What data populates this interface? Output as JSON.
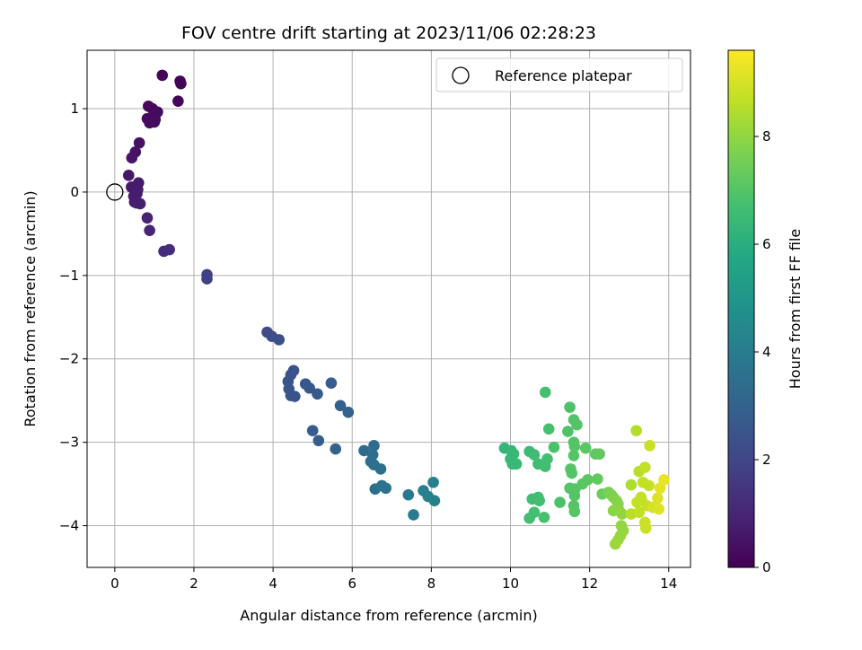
{
  "chart_data": {
    "type": "scatter",
    "title": "FOV centre drift starting at 2023/11/06 02:28:23",
    "xlabel": "Angular distance from reference (arcmin)",
    "ylabel": "Rotation from reference (arcmin)",
    "xlim": [
      -0.7,
      14.55
    ],
    "ylim": [
      -4.5,
      1.7
    ],
    "xticks": [
      0,
      2,
      4,
      6,
      8,
      10,
      12,
      14
    ],
    "yticks": [
      -4,
      -3,
      -2,
      -1,
      0,
      1
    ],
    "grid": true,
    "legend": {
      "placement": "top-right",
      "entries": [
        "Reference platepar"
      ]
    },
    "colorbar": {
      "label": "Hours from first FF file",
      "range": [
        0,
        9.6
      ],
      "ticks": [
        0,
        2,
        4,
        6,
        8
      ],
      "colormap": "viridis"
    },
    "reference_point": {
      "x": 0,
      "y": 0
    },
    "points": [
      {
        "x": 1.2,
        "y": 1.4,
        "c": 0.1
      },
      {
        "x": 1.65,
        "y": 1.33,
        "c": 0.1
      },
      {
        "x": 1.67,
        "y": 1.3,
        "c": 0.1
      },
      {
        "x": 1.6,
        "y": 1.09,
        "c": 0.15
      },
      {
        "x": 0.85,
        "y": 1.03,
        "c": 0.2
      },
      {
        "x": 0.95,
        "y": 1.0,
        "c": 0.2
      },
      {
        "x": 1.08,
        "y": 0.96,
        "c": 0.25
      },
      {
        "x": 0.82,
        "y": 0.88,
        "c": 0.25
      },
      {
        "x": 0.95,
        "y": 0.9,
        "c": 0.25
      },
      {
        "x": 1.02,
        "y": 0.87,
        "c": 0.3
      },
      {
        "x": 0.88,
        "y": 0.83,
        "c": 0.3
      },
      {
        "x": 1.0,
        "y": 0.84,
        "c": 0.3
      },
      {
        "x": 0.62,
        "y": 0.59,
        "c": 0.45
      },
      {
        "x": 0.52,
        "y": 0.48,
        "c": 0.5
      },
      {
        "x": 0.43,
        "y": 0.41,
        "c": 0.55
      },
      {
        "x": 0.35,
        "y": 0.2,
        "c": 0.6
      },
      {
        "x": 0.42,
        "y": 0.06,
        "c": 0.65
      },
      {
        "x": 0.6,
        "y": 0.11,
        "c": 0.7
      },
      {
        "x": 0.58,
        "y": 0.03,
        "c": 0.7
      },
      {
        "x": 0.48,
        "y": -0.05,
        "c": 0.75
      },
      {
        "x": 0.56,
        "y": -0.02,
        "c": 0.75
      },
      {
        "x": 0.5,
        "y": -0.12,
        "c": 0.75
      },
      {
        "x": 0.64,
        "y": -0.14,
        "c": 0.8
      },
      {
        "x": 0.55,
        "y": -0.13,
        "c": 0.8
      },
      {
        "x": 0.82,
        "y": -0.31,
        "c": 0.9
      },
      {
        "x": 0.88,
        "y": -0.46,
        "c": 0.95
      },
      {
        "x": 1.38,
        "y": -0.69,
        "c": 1.2
      },
      {
        "x": 1.24,
        "y": -0.71,
        "c": 1.2
      },
      {
        "x": 2.33,
        "y": -0.99,
        "c": 1.8
      },
      {
        "x": 2.33,
        "y": -1.04,
        "c": 1.8
      },
      {
        "x": 3.85,
        "y": -1.68,
        "c": 2.2
      },
      {
        "x": 3.97,
        "y": -1.73,
        "c": 2.25
      },
      {
        "x": 4.15,
        "y": -1.77,
        "c": 2.3
      },
      {
        "x": 4.52,
        "y": -2.14,
        "c": 2.45
      },
      {
        "x": 4.45,
        "y": -2.19,
        "c": 2.45
      },
      {
        "x": 4.38,
        "y": -2.27,
        "c": 2.45
      },
      {
        "x": 4.4,
        "y": -2.36,
        "c": 2.5
      },
      {
        "x": 4.45,
        "y": -2.44,
        "c": 2.5
      },
      {
        "x": 4.55,
        "y": -2.45,
        "c": 2.5
      },
      {
        "x": 4.82,
        "y": -2.3,
        "c": 2.6
      },
      {
        "x": 4.92,
        "y": -2.35,
        "c": 2.6
      },
      {
        "x": 5.12,
        "y": -2.42,
        "c": 2.7
      },
      {
        "x": 5.47,
        "y": -2.29,
        "c": 2.8
      },
      {
        "x": 5.7,
        "y": -2.56,
        "c": 2.9
      },
      {
        "x": 5.9,
        "y": -2.64,
        "c": 2.95
      },
      {
        "x": 5.0,
        "y": -2.86,
        "c": 2.8
      },
      {
        "x": 5.15,
        "y": -2.98,
        "c": 2.85
      },
      {
        "x": 5.58,
        "y": -3.08,
        "c": 3.0
      },
      {
        "x": 6.3,
        "y": -3.1,
        "c": 3.3
      },
      {
        "x": 6.55,
        "y": -3.04,
        "c": 3.4
      },
      {
        "x": 6.52,
        "y": -3.15,
        "c": 3.4
      },
      {
        "x": 6.47,
        "y": -3.23,
        "c": 3.45
      },
      {
        "x": 6.55,
        "y": -3.27,
        "c": 3.45
      },
      {
        "x": 6.72,
        "y": -3.32,
        "c": 3.5
      },
      {
        "x": 6.58,
        "y": -3.56,
        "c": 3.55
      },
      {
        "x": 6.75,
        "y": -3.52,
        "c": 3.6
      },
      {
        "x": 6.85,
        "y": -3.55,
        "c": 3.6
      },
      {
        "x": 7.42,
        "y": -3.63,
        "c": 3.9
      },
      {
        "x": 7.55,
        "y": -3.87,
        "c": 4.0
      },
      {
        "x": 7.8,
        "y": -3.58,
        "c": 4.1
      },
      {
        "x": 7.92,
        "y": -3.65,
        "c": 4.15
      },
      {
        "x": 8.08,
        "y": -3.7,
        "c": 4.2
      },
      {
        "x": 8.05,
        "y": -3.48,
        "c": 4.2
      },
      {
        "x": 10.88,
        "y": -2.4,
        "c": 6.7
      },
      {
        "x": 11.5,
        "y": -2.58,
        "c": 6.9
      },
      {
        "x": 11.6,
        "y": -2.73,
        "c": 6.95
      },
      {
        "x": 11.68,
        "y": -2.79,
        "c": 7.0
      },
      {
        "x": 10.97,
        "y": -2.84,
        "c": 6.75
      },
      {
        "x": 11.45,
        "y": -2.87,
        "c": 6.9
      },
      {
        "x": 11.6,
        "y": -3.0,
        "c": 6.95
      },
      {
        "x": 9.85,
        "y": -3.07,
        "c": 6.3
      },
      {
        "x": 10.02,
        "y": -3.1,
        "c": 6.35
      },
      {
        "x": 10.08,
        "y": -3.14,
        "c": 6.4
      },
      {
        "x": 10.48,
        "y": -3.11,
        "c": 6.5
      },
      {
        "x": 10.6,
        "y": -3.15,
        "c": 6.55
      },
      {
        "x": 10.0,
        "y": -3.2,
        "c": 6.4
      },
      {
        "x": 10.05,
        "y": -3.26,
        "c": 6.4
      },
      {
        "x": 10.15,
        "y": -3.26,
        "c": 6.45
      },
      {
        "x": 10.7,
        "y": -3.26,
        "c": 6.6
      },
      {
        "x": 10.88,
        "y": -3.29,
        "c": 6.65
      },
      {
        "x": 10.93,
        "y": -3.2,
        "c": 6.7
      },
      {
        "x": 11.1,
        "y": -3.06,
        "c": 6.8
      },
      {
        "x": 11.62,
        "y": -3.05,
        "c": 7.0
      },
      {
        "x": 11.6,
        "y": -3.16,
        "c": 7.0
      },
      {
        "x": 11.9,
        "y": -3.07,
        "c": 7.1
      },
      {
        "x": 12.15,
        "y": -3.14,
        "c": 7.2
      },
      {
        "x": 12.25,
        "y": -3.14,
        "c": 7.25
      },
      {
        "x": 11.52,
        "y": -3.32,
        "c": 7.0
      },
      {
        "x": 11.55,
        "y": -3.37,
        "c": 7.0
      },
      {
        "x": 11.5,
        "y": -3.55,
        "c": 7.0
      },
      {
        "x": 11.63,
        "y": -3.56,
        "c": 7.05
      },
      {
        "x": 11.82,
        "y": -3.5,
        "c": 7.1
      },
      {
        "x": 11.95,
        "y": -3.45,
        "c": 7.15
      },
      {
        "x": 12.2,
        "y": -3.44,
        "c": 7.25
      },
      {
        "x": 10.55,
        "y": -3.68,
        "c": 6.6
      },
      {
        "x": 10.7,
        "y": -3.66,
        "c": 6.65
      },
      {
        "x": 10.73,
        "y": -3.7,
        "c": 6.65
      },
      {
        "x": 10.6,
        "y": -3.84,
        "c": 6.7
      },
      {
        "x": 10.48,
        "y": -3.91,
        "c": 6.65
      },
      {
        "x": 10.85,
        "y": -3.9,
        "c": 6.75
      },
      {
        "x": 11.25,
        "y": -3.72,
        "c": 6.85
      },
      {
        "x": 11.62,
        "y": -3.64,
        "c": 7.0
      },
      {
        "x": 11.6,
        "y": -3.76,
        "c": 7.0
      },
      {
        "x": 11.62,
        "y": -3.83,
        "c": 7.05
      },
      {
        "x": 12.32,
        "y": -3.62,
        "c": 7.4
      },
      {
        "x": 12.48,
        "y": -3.6,
        "c": 7.6
      },
      {
        "x": 12.55,
        "y": -3.63,
        "c": 7.7
      },
      {
        "x": 12.6,
        "y": -3.66,
        "c": 7.75
      },
      {
        "x": 12.68,
        "y": -3.7,
        "c": 7.8
      },
      {
        "x": 12.72,
        "y": -3.74,
        "c": 7.85
      },
      {
        "x": 12.6,
        "y": -3.82,
        "c": 7.9
      },
      {
        "x": 12.75,
        "y": -3.82,
        "c": 7.95
      },
      {
        "x": 12.82,
        "y": -3.86,
        "c": 8.0
      },
      {
        "x": 12.8,
        "y": -4.0,
        "c": 8.05
      },
      {
        "x": 12.85,
        "y": -4.06,
        "c": 8.05
      },
      {
        "x": 12.78,
        "y": -4.12,
        "c": 8.1
      },
      {
        "x": 12.72,
        "y": -4.17,
        "c": 8.1
      },
      {
        "x": 12.65,
        "y": -4.22,
        "c": 8.15
      },
      {
        "x": 13.05,
        "y": -3.51,
        "c": 8.4
      },
      {
        "x": 13.18,
        "y": -2.86,
        "c": 8.5
      },
      {
        "x": 13.25,
        "y": -3.35,
        "c": 8.6
      },
      {
        "x": 13.4,
        "y": -3.3,
        "c": 8.7
      },
      {
        "x": 13.52,
        "y": -3.04,
        "c": 8.8
      },
      {
        "x": 13.35,
        "y": -3.48,
        "c": 8.7
      },
      {
        "x": 13.5,
        "y": -3.52,
        "c": 8.75
      },
      {
        "x": 13.2,
        "y": -3.72,
        "c": 8.7
      },
      {
        "x": 13.32,
        "y": -3.7,
        "c": 8.75
      },
      {
        "x": 13.45,
        "y": -3.76,
        "c": 8.8
      },
      {
        "x": 13.3,
        "y": -3.66,
        "c": 8.75
      },
      {
        "x": 13.05,
        "y": -3.86,
        "c": 8.6
      },
      {
        "x": 13.25,
        "y": -3.84,
        "c": 8.7
      },
      {
        "x": 13.4,
        "y": -3.96,
        "c": 8.8
      },
      {
        "x": 13.42,
        "y": -4.03,
        "c": 8.85
      },
      {
        "x": 13.6,
        "y": -3.78,
        "c": 9.0
      },
      {
        "x": 13.75,
        "y": -3.8,
        "c": 9.1
      },
      {
        "x": 13.72,
        "y": -3.67,
        "c": 9.1
      },
      {
        "x": 13.78,
        "y": -3.55,
        "c": 9.2
      },
      {
        "x": 13.88,
        "y": -3.45,
        "c": 9.3
      }
    ]
  }
}
